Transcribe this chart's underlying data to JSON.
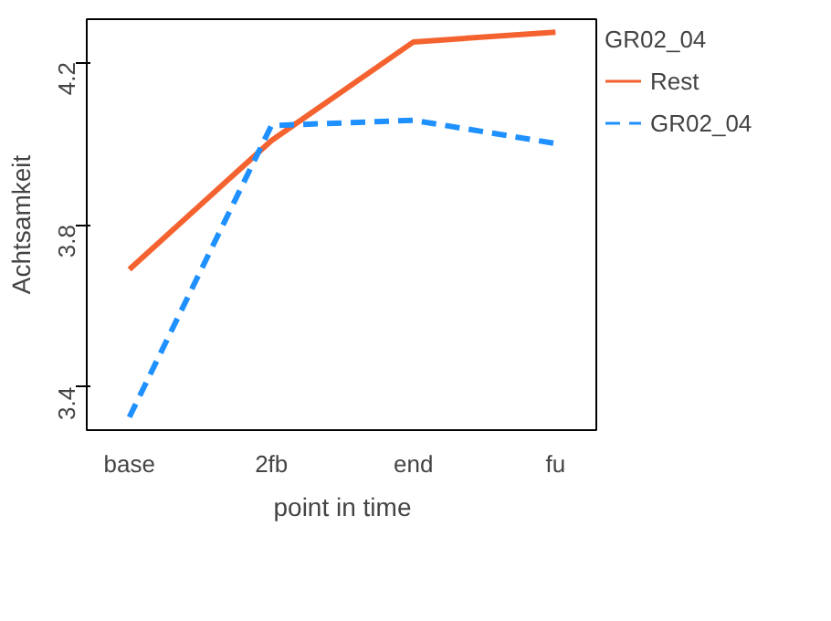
{
  "chart_data": {
    "type": "line",
    "xlabel": "point in time",
    "ylabel": "Achtsamkeit",
    "legend_title": "GR02_04",
    "categories": [
      "base",
      "2fb",
      "end",
      "fu"
    ],
    "series": [
      {
        "name": "Rest",
        "color": "#f4622f",
        "line_style": "solid",
        "values": [
          3.69,
          4.007,
          4.25,
          4.274
        ]
      },
      {
        "name": "GR02_04",
        "color": "#1e90ff",
        "line_style": "dashed",
        "values": [
          3.326,
          4.044,
          4.057,
          4.0
        ]
      }
    ],
    "ylim": [
      3.294,
      4.306
    ],
    "yticks": [
      3.4,
      3.8,
      4.2
    ],
    "grid": false,
    "legend": "right"
  }
}
